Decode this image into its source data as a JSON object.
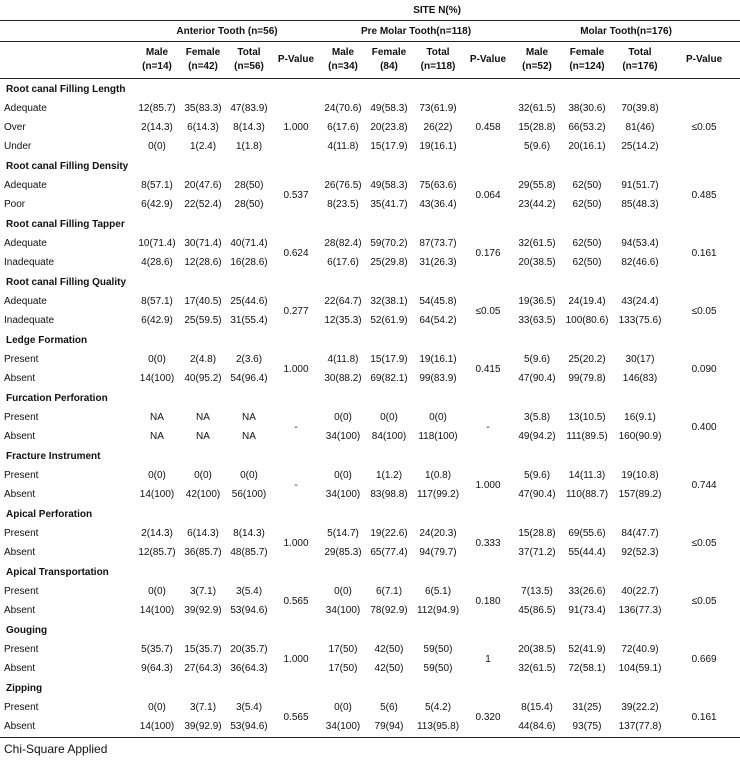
{
  "site_header": "SITE N(%)",
  "groups": [
    {
      "title": "Anterior Tooth (n=56)"
    },
    {
      "title": "Pre Molar Tooth(n=118)"
    },
    {
      "title": "Molar Tooth(n=176)"
    }
  ],
  "columns": [
    [
      "Male",
      "(n=14)"
    ],
    [
      "Female",
      "(n=42)"
    ],
    [
      "Total",
      "(n=56)"
    ],
    [
      "P-Value",
      ""
    ],
    [
      "Male",
      "(n=34)"
    ],
    [
      "Female",
      "(84)"
    ],
    [
      "Total",
      "(n=118)"
    ],
    [
      "P-Value",
      ""
    ],
    [
      "Male",
      "(n=52)"
    ],
    [
      "Female",
      "(n=124)"
    ],
    [
      "Total",
      "(n=176)"
    ],
    [
      "P-Value",
      ""
    ]
  ],
  "categories": [
    {
      "name": "Root canal Filling Length",
      "pv": [
        "1.000",
        "0.458",
        "≤0.05"
      ],
      "rows": [
        {
          "label": "Adequate",
          "a": [
            "12(85.7)",
            "35(83.3)",
            "47(83.9)"
          ],
          "p": [
            "24(70.6)",
            "49(58.3)",
            "73(61.9)"
          ],
          "m": [
            "32(61.5)",
            "38(30.6)",
            "70(39.8)"
          ]
        },
        {
          "label": "Over",
          "a": [
            "2(14.3)",
            "6(14.3)",
            "8(14.3)"
          ],
          "p": [
            "6(17.6)",
            "20(23.8)",
            "26(22)"
          ],
          "m": [
            "15(28.8)",
            "66(53.2)",
            "81(46)"
          ]
        },
        {
          "label": "Under",
          "a": [
            "0(0)",
            "1(2.4)",
            "1(1.8)"
          ],
          "p": [
            "4(11.8)",
            "15(17.9)",
            "19(16.1)"
          ],
          "m": [
            "5(9.6)",
            "20(16.1)",
            "25(14.2)"
          ]
        }
      ]
    },
    {
      "name": "Root canal Filling Density",
      "pv": [
        "0.537",
        "0.064",
        "0.485"
      ],
      "rows": [
        {
          "label": "Adequate",
          "a": [
            "8(57.1)",
            "20(47.6)",
            "28(50)"
          ],
          "p": [
            "26(76.5)",
            "49(58.3)",
            "75(63.6)"
          ],
          "m": [
            "29(55.8)",
            "62(50)",
            "91(51.7)"
          ]
        },
        {
          "label": "Poor",
          "a": [
            "6(42.9)",
            "22(52.4)",
            "28(50)"
          ],
          "p": [
            "8(23.5)",
            "35(41.7)",
            "43(36.4)"
          ],
          "m": [
            "23(44.2)",
            "62(50)",
            "85(48.3)"
          ]
        }
      ]
    },
    {
      "name": "Root canal Filling Tapper",
      "pv": [
        "0.624",
        "0.176",
        "0.161"
      ],
      "rows": [
        {
          "label": "Adequate",
          "a": [
            "10(71.4)",
            "30(71.4)",
            "40(71.4)"
          ],
          "p": [
            "28(82.4)",
            "59(70.2)",
            "87(73.7)"
          ],
          "m": [
            "32(61.5)",
            "62(50)",
            "94(53.4)"
          ]
        },
        {
          "label": "Inadequate",
          "a": [
            "4(28.6)",
            "12(28.6)",
            "16(28.6)"
          ],
          "p": [
            "6(17.6)",
            "25(29.8)",
            "31(26.3)"
          ],
          "m": [
            "20(38.5)",
            "62(50)",
            "82(46.6)"
          ]
        }
      ]
    },
    {
      "name": "Root canal Filling Quality",
      "pv": [
        "0.277",
        "≤0.05",
        "≤0.05"
      ],
      "rows": [
        {
          "label": "Adequate",
          "a": [
            "8(57.1)",
            "17(40.5)",
            "25(44.6)"
          ],
          "p": [
            "22(64.7)",
            "32(38.1)",
            "54(45.8)"
          ],
          "m": [
            "19(36.5)",
            "24(19.4)",
            "43(24.4)"
          ]
        },
        {
          "label": "Inadequate",
          "a": [
            "6(42.9)",
            "25(59.5)",
            "31(55.4)"
          ],
          "p": [
            "12(35.3)",
            "52(61.9)",
            "64(54.2)"
          ],
          "m": [
            "33(63.5)",
            "100(80.6)",
            "133(75.6)"
          ]
        }
      ]
    },
    {
      "name": "Ledge Formation",
      "pv": [
        "1.000",
        "0.415",
        "0.090"
      ],
      "rows": [
        {
          "label": "Present",
          "a": [
            "0(0)",
            "2(4.8)",
            "2(3.6)"
          ],
          "p": [
            "4(11.8)",
            "15(17.9)",
            "19(16.1)"
          ],
          "m": [
            "5(9.6)",
            "25(20.2)",
            "30(17)"
          ]
        },
        {
          "label": "Absent",
          "a": [
            "14(100)",
            "40(95.2)",
            "54(96.4)"
          ],
          "p": [
            "30(88.2)",
            "69(82.1)",
            "99(83.9)"
          ],
          "m": [
            "47(90.4)",
            "99(79.8)",
            "146(83)"
          ]
        }
      ]
    },
    {
      "name": "Furcation Perforation",
      "pv": [
        "-",
        "-",
        "0.400"
      ],
      "rows": [
        {
          "label": "Present",
          "a": [
            "NA",
            "NA",
            "NA"
          ],
          "p": [
            "0(0)",
            "0(0)",
            "0(0)"
          ],
          "m": [
            "3(5.8)",
            "13(10.5)",
            "16(9.1)"
          ]
        },
        {
          "label": "Absent",
          "a": [
            "NA",
            "NA",
            "NA"
          ],
          "p": [
            "34(100)",
            "84(100)",
            "118(100)"
          ],
          "m": [
            "49(94.2)",
            "111(89.5)",
            "160(90.9)"
          ]
        }
      ]
    },
    {
      "name": "Fracture Instrument",
      "pv": [
        "-",
        "1.000",
        "0.744"
      ],
      "rows": [
        {
          "label": "Present",
          "a": [
            "0(0)",
            "0(0)",
            "0(0)"
          ],
          "p": [
            "0(0)",
            "1(1.2)",
            "1(0.8)"
          ],
          "m": [
            "5(9.6)",
            "14(11.3)",
            "19(10.8)"
          ]
        },
        {
          "label": "Absent",
          "a": [
            "14(100)",
            "42(100)",
            "56(100)"
          ],
          "p": [
            "34(100)",
            "83(98.8)",
            "117(99.2)"
          ],
          "m": [
            "47(90.4)",
            "110(88.7)",
            "157(89.2)"
          ]
        }
      ]
    },
    {
      "name": "Apical Perforation",
      "pv": [
        "1.000",
        "0.333",
        "≤0.05"
      ],
      "rows": [
        {
          "label": "Present",
          "a": [
            "2(14.3)",
            "6(14.3)",
            "8(14.3)"
          ],
          "p": [
            "5(14.7)",
            "19(22.6)",
            "24(20.3)"
          ],
          "m": [
            "15(28.8)",
            "69(55.6)",
            "84(47.7)"
          ]
        },
        {
          "label": "Absent",
          "a": [
            "12(85.7)",
            "36(85.7)",
            "48(85.7)"
          ],
          "p": [
            "29(85.3)",
            "65(77.4)",
            "94(79.7)"
          ],
          "m": [
            "37(71.2)",
            "55(44.4)",
            "92(52.3)"
          ]
        }
      ]
    },
    {
      "name": "Apical Transportation",
      "pv": [
        "0.565",
        "0.180",
        "≤0.05"
      ],
      "rows": [
        {
          "label": "Present",
          "a": [
            "0(0)",
            "3(7.1)",
            "3(5.4)"
          ],
          "p": [
            "0(0)",
            "6(7.1)",
            "6(5.1)"
          ],
          "m": [
            "7(13.5)",
            "33(26.6)",
            "40(22.7)"
          ]
        },
        {
          "label": "Absent",
          "a": [
            "14(100)",
            "39(92.9)",
            "53(94.6)"
          ],
          "p": [
            "34(100)",
            "78(92.9)",
            "112(94.9)"
          ],
          "m": [
            "45(86.5)",
            "91(73.4)",
            "136(77.3)"
          ]
        }
      ]
    },
    {
      "name": "Gouging",
      "pv": [
        "1.000",
        "1",
        "0.669"
      ],
      "rows": [
        {
          "label": "Present",
          "a": [
            "5(35.7)",
            "15(35.7)",
            "20(35.7)"
          ],
          "p": [
            "17(50)",
            "42(50)",
            "59(50)"
          ],
          "m": [
            "20(38.5)",
            "52(41.9)",
            "72(40.9)"
          ]
        },
        {
          "label": "Absent",
          "a": [
            "9(64.3)",
            "27(64.3)",
            "36(64.3)"
          ],
          "p": [
            "17(50)",
            "42(50)",
            "59(50)"
          ],
          "m": [
            "32(61.5)",
            "72(58.1)",
            "104(59.1)"
          ]
        }
      ]
    },
    {
      "name": "Zipping",
      "pv": [
        "0.565",
        "0.320",
        "0.161"
      ],
      "rows": [
        {
          "label": "Present",
          "a": [
            "0(0)",
            "3(7.1)",
            "3(5.4)"
          ],
          "p": [
            "0(0)",
            "5(6)",
            "5(4.2)"
          ],
          "m": [
            "8(15.4)",
            "31(25)",
            "39(22.2)"
          ]
        },
        {
          "label": "Absent",
          "a": [
            "14(100)",
            "39(92.9)",
            "53(94.6)"
          ],
          "p": [
            "34(100)",
            "79(94)",
            "113(95.8)"
          ],
          "m": [
            "44(84.6)",
            "93(75)",
            "137(77.8)"
          ]
        }
      ]
    }
  ],
  "footnote": "Chi-Square Applied"
}
